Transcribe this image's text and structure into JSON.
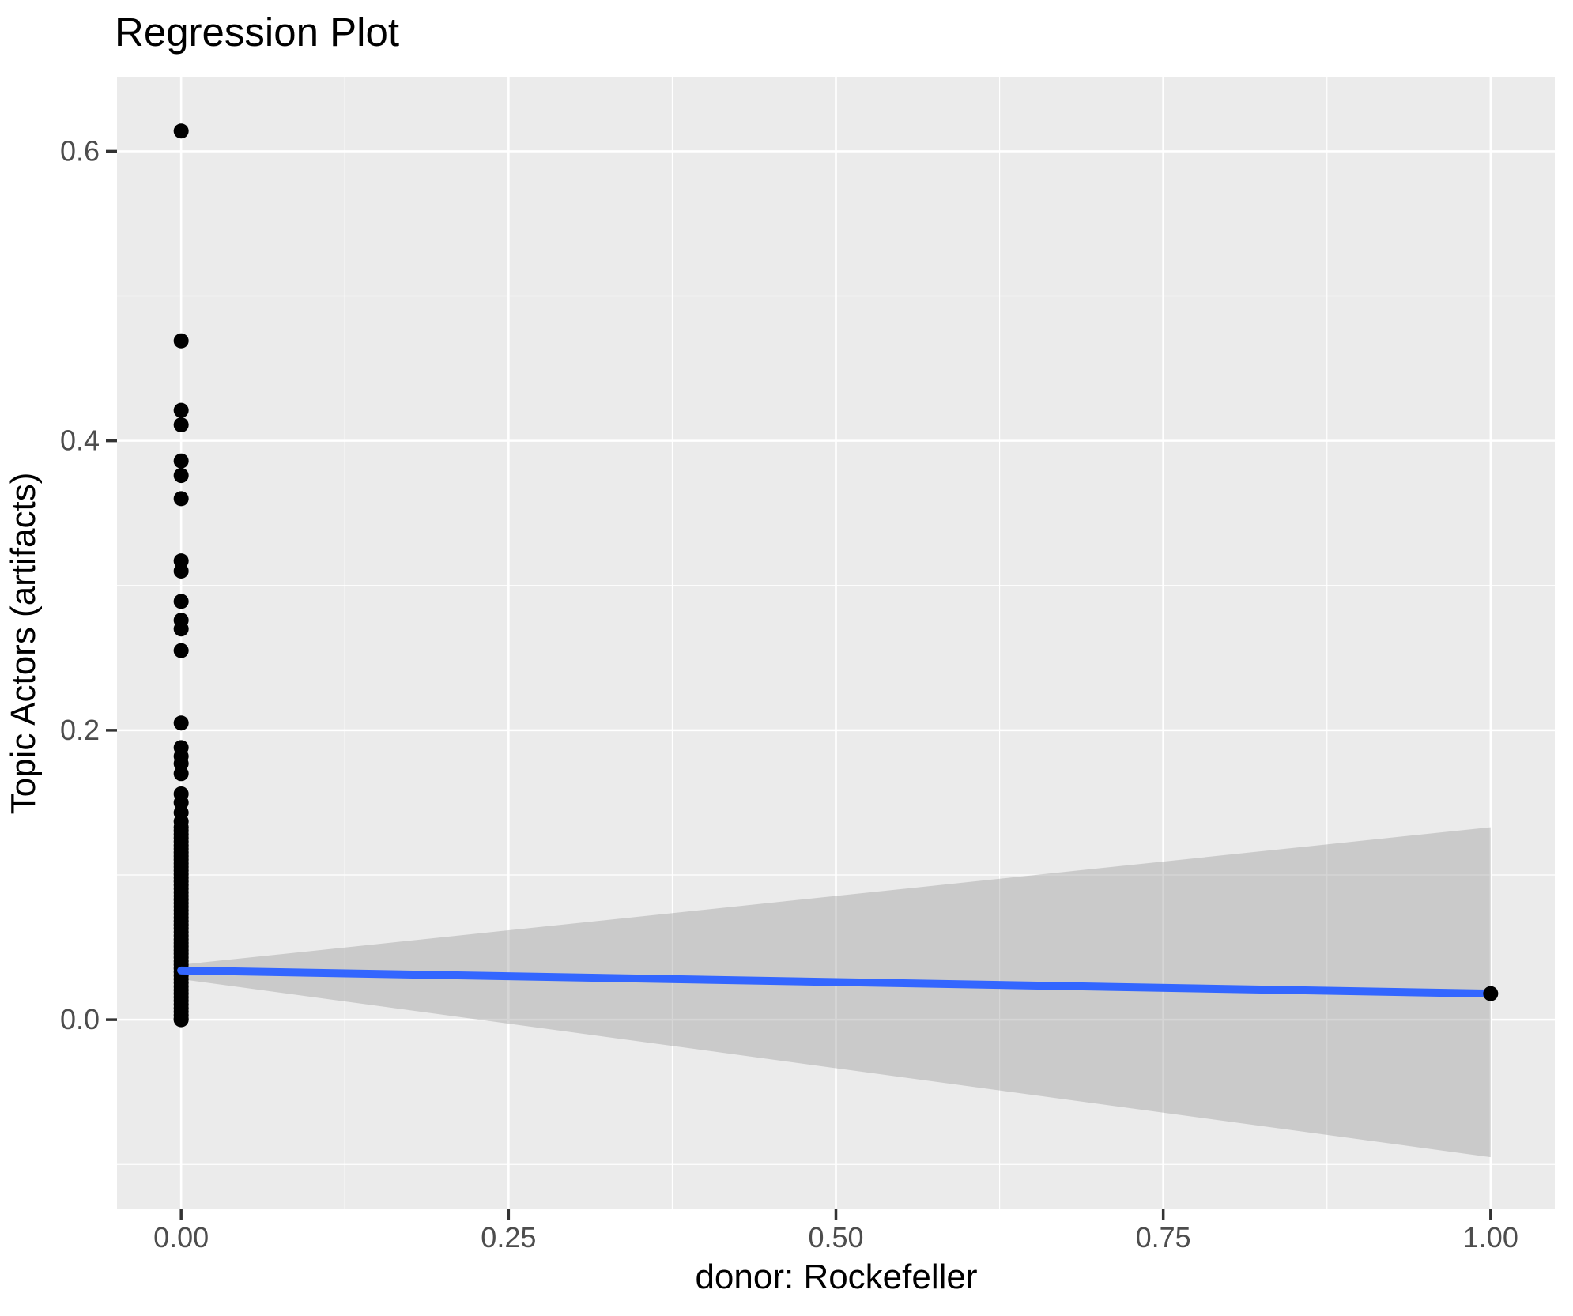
{
  "title": "Regression Plot",
  "x_axis": {
    "label": "donor: Rockefeller",
    "tick_labels": [
      "0.00",
      "0.25",
      "0.50",
      "0.75",
      "1.00"
    ],
    "tick_values": [
      0,
      0.25,
      0.5,
      0.75,
      1.0
    ]
  },
  "y_axis": {
    "label": "Topic Actors (artifacts)",
    "tick_labels": [
      "0.0",
      "0.2",
      "0.4",
      "0.6"
    ],
    "tick_values": [
      0,
      0.2,
      0.4,
      0.6
    ]
  },
  "colors": {
    "panel_background": "#EBEBEB",
    "gridline": "#FFFFFF",
    "point": "#000000",
    "regression_line": "#3366FF",
    "confidence_band": "rgba(153,153,153,0.40)",
    "tick_label": "#4D4D4D",
    "tick_mark": "#333333",
    "title_text": "#000000"
  },
  "chart_data": {
    "type": "scatter",
    "title": "Regression Plot",
    "xlabel": "donor: Rockefeller",
    "ylabel": "Topic Actors (artifacts)",
    "xlim": [
      -0.049,
      1.049
    ],
    "ylim": [
      -0.131,
      0.651
    ],
    "x_ticks": [
      0,
      0.25,
      0.5,
      0.75,
      1.0
    ],
    "x_tick_labels": [
      "0.00",
      "0.25",
      "0.50",
      "0.75",
      "1.00"
    ],
    "y_ticks": [
      0,
      0.2,
      0.4,
      0.6
    ],
    "y_tick_labels": [
      "0.0",
      "0.2",
      "0.4",
      "0.6"
    ],
    "grid": "white major and minor gridlines on gray panel",
    "legend_position": "none",
    "series": [
      {
        "name": "observations at donor=0",
        "type": "scatter",
        "x_constant": 0,
        "y_values": [
          0.614,
          0.469,
          0.421,
          0.411,
          0.386,
          0.376,
          0.36,
          0.317,
          0.31,
          0.289,
          0.276,
          0.27,
          0.255,
          0.205,
          0.188,
          0.182,
          0.177,
          0.17,
          0.156,
          0.15,
          0.143,
          0.137,
          0.133,
          0.1305,
          0.128,
          0.1255,
          0.123,
          0.1205,
          0.118,
          0.1155,
          0.113,
          0.1105,
          0.108,
          0.1055,
          0.103,
          0.1005,
          0.098,
          0.0955,
          0.093,
          0.0905,
          0.088,
          0.0855,
          0.083,
          0.0805,
          0.078,
          0.0755,
          0.073,
          0.0705,
          0.068,
          0.0655,
          0.063,
          0.0605,
          0.058,
          0.0555,
          0.053,
          0.0505,
          0.048,
          0.0455,
          0.043,
          0.0405,
          0.038,
          0.0355,
          0.033,
          0.0305,
          0.028,
          0.0255,
          0.023,
          0.0205,
          0.018,
          0.0155,
          0.013,
          0.0105,
          0.008,
          0.0055,
          0.003,
          0.0005,
          0.0
        ]
      },
      {
        "name": "observation at donor=1",
        "type": "scatter",
        "points": [
          [
            1.0,
            0.018
          ]
        ]
      },
      {
        "name": "linear fit",
        "type": "line",
        "points": [
          [
            0.0,
            0.034
          ],
          [
            1.0,
            0.018
          ]
        ]
      },
      {
        "name": "95% confidence band",
        "type": "area",
        "upper": [
          [
            0.0,
            0.038
          ],
          [
            1.0,
            0.133
          ]
        ],
        "lower": [
          [
            0.0,
            0.028
          ],
          [
            1.0,
            -0.095
          ]
        ]
      }
    ]
  }
}
